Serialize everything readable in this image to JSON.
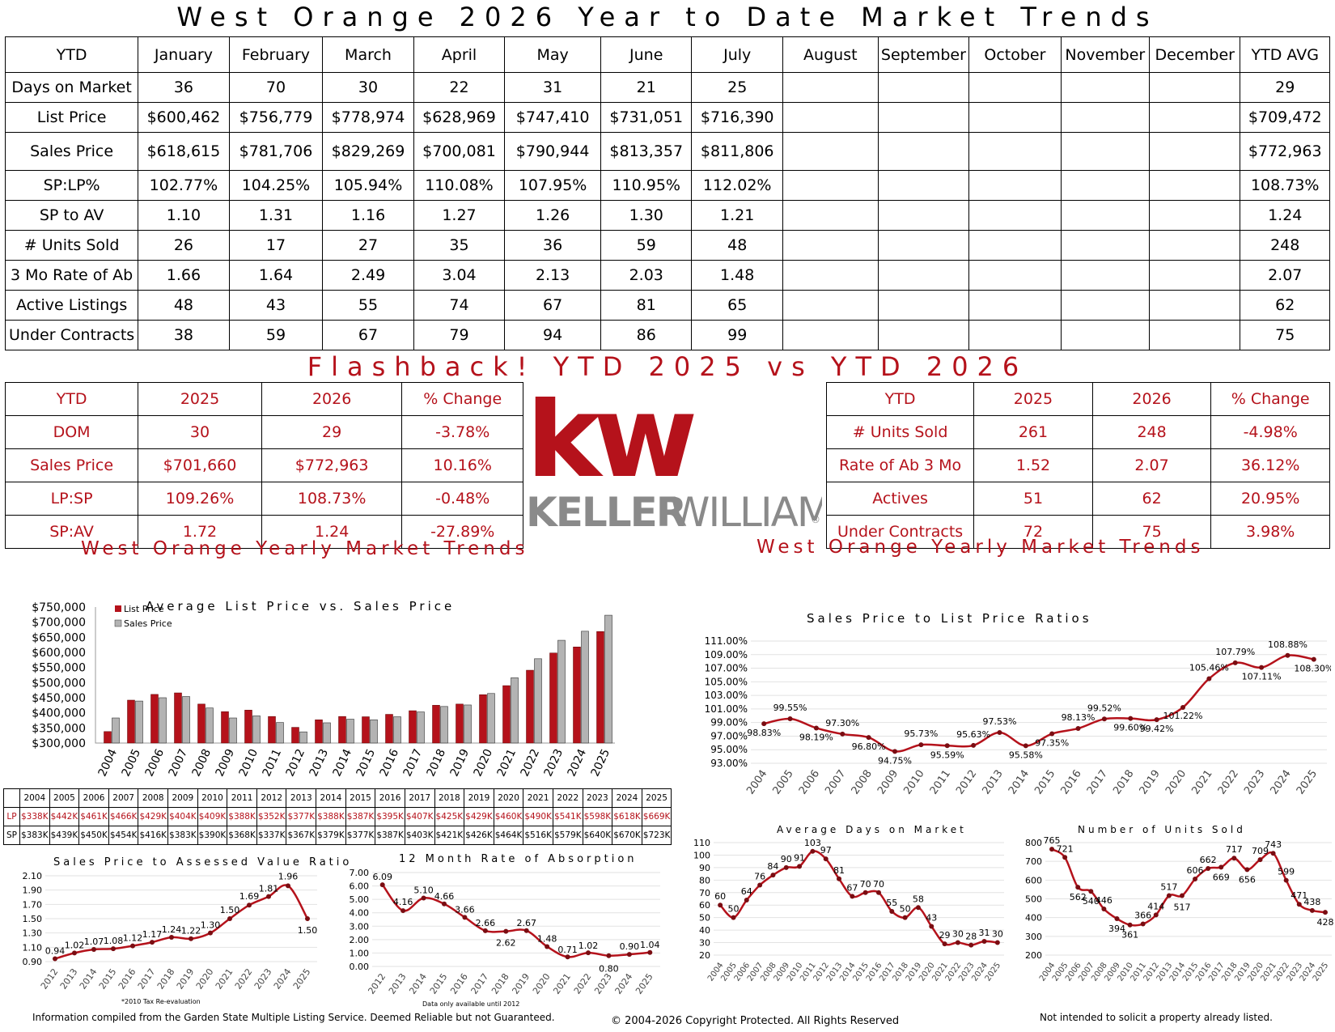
{
  "header": {
    "title": "West Orange 2026 Year to Date Market Trends"
  },
  "ytd_table": {
    "columns": [
      "YTD",
      "January",
      "February",
      "March",
      "April",
      "May",
      "June",
      "July",
      "August",
      "September",
      "October",
      "November",
      "December",
      "YTD AVG"
    ],
    "rows": [
      {
        "label": "Days on Market",
        "values": [
          "36",
          "70",
          "30",
          "22",
          "31",
          "21",
          "25",
          "",
          "",
          "",
          "",
          ""
        ],
        "avg": "29"
      },
      {
        "label": "List Price",
        "values": [
          "$600,462",
          "$756,779",
          "$778,974",
          "$628,969",
          "$747,410",
          "$731,051",
          "$716,390",
          "",
          "",
          "",
          "",
          ""
        ],
        "avg": "$709,472"
      },
      {
        "label": "Sales Price",
        "values": [
          "$618,615",
          "$781,706",
          "$829,269",
          "$700,081",
          "$790,944",
          "$813,357",
          "$811,806",
          "",
          "",
          "",
          "",
          ""
        ],
        "avg": "$772,963"
      },
      {
        "label": "SP:LP%",
        "values": [
          "102.77%",
          "104.25%",
          "105.94%",
          "110.08%",
          "107.95%",
          "110.95%",
          "112.02%",
          "",
          "",
          "",
          "",
          ""
        ],
        "avg": "108.73%"
      },
      {
        "label": "SP to AV",
        "values": [
          "1.10",
          "1.31",
          "1.16",
          "1.27",
          "1.26",
          "1.30",
          "1.21",
          "",
          "",
          "",
          "",
          ""
        ],
        "avg": "1.24"
      },
      {
        "label": "# Units Sold",
        "values": [
          "26",
          "17",
          "27",
          "35",
          "36",
          "59",
          "48",
          "",
          "",
          "",
          "",
          ""
        ],
        "avg": "248"
      },
      {
        "label": "3 Mo Rate of Ab",
        "values": [
          "1.66",
          "1.64",
          "2.49",
          "3.04",
          "2.13",
          "2.03",
          "1.48",
          "",
          "",
          "",
          "",
          ""
        ],
        "avg": "2.07"
      },
      {
        "label": "Active Listings",
        "values": [
          "48",
          "43",
          "55",
          "74",
          "67",
          "81",
          "65",
          "",
          "",
          "",
          "",
          ""
        ],
        "avg": "62"
      },
      {
        "label": "Under Contracts",
        "values": [
          "38",
          "59",
          "67",
          "79",
          "94",
          "86",
          "99",
          "",
          "",
          "",
          "",
          ""
        ],
        "avg": "75"
      }
    ]
  },
  "flashback": {
    "title": "Flashback!  YTD 2025 vs YTD 2026",
    "left": {
      "headers": [
        "YTD",
        "2025",
        "2026",
        "% Change"
      ],
      "rows": [
        [
          "DOM",
          "30",
          "29",
          "-3.78%"
        ],
        [
          "Sales Price",
          "$701,660",
          "$772,963",
          "10.16%"
        ],
        [
          "LP:SP",
          "109.26%",
          "108.73%",
          "-0.48%"
        ],
        [
          "SP:AV",
          "1.72",
          "1.24",
          "-27.89%"
        ]
      ]
    },
    "right": {
      "headers": [
        "YTD",
        "2025",
        "2026",
        "% Change"
      ],
      "rows": [
        [
          "# Units Sold",
          "261",
          "248",
          "-4.98%"
        ],
        [
          "Rate of Ab 3 Mo",
          "1.52",
          "2.07",
          "36.12%"
        ],
        [
          "Actives",
          "51",
          "62",
          "20.95%"
        ],
        [
          "Under Contracts",
          "72",
          "75",
          "3.98%"
        ]
      ]
    }
  },
  "logo": {
    "mark": "kw",
    "wordmark_left": "KELLER",
    "wordmark_right": "WILLIAMS",
    "registered": "®",
    "mark_color": "#b5121b",
    "wordmark_color": "#8a8a8a"
  },
  "sections": {
    "left_title": "West Orange Yearly Market Trends",
    "right_title": "West Orange Yearly Market Trends"
  },
  "colors": {
    "accent": "#b5121b",
    "sales_bar": "#b3b3b3"
  },
  "footer": {
    "left": "Information compiled from the Garden State Multiple Listing Service.  Deemed Reliable but not Guaranteed.",
    "center": "© 2004-2026 Copyright Protected.  All Rights Reserved",
    "right": "Not intended to solicit a property already listed.",
    "tax_note": "*2010 Tax Re-evaluation",
    "absorption_note": "Data only available until 2012"
  },
  "chart_data": [
    {
      "id": "lp_vs_sp",
      "type": "bar",
      "title": "Average List Price vs. Sales Price",
      "categories": [
        "2004",
        "2005",
        "2006",
        "2007",
        "2008",
        "2009",
        "2010",
        "2011",
        "2012",
        "2013",
        "2014",
        "2015",
        "2016",
        "2017",
        "2018",
        "2019",
        "2020",
        "2021",
        "2022",
        "2023",
        "2024",
        "2025"
      ],
      "series": [
        {
          "name": "List Price",
          "values": [
            338,
            442,
            461,
            466,
            429,
            404,
            409,
            388,
            352,
            377,
            388,
            387,
            395,
            407,
            425,
            429,
            460,
            490,
            541,
            598,
            618,
            669
          ]
        },
        {
          "name": "Sales Price",
          "values": [
            383,
            439,
            450,
            454,
            416,
            383,
            390,
            368,
            337,
            367,
            379,
            377,
            387,
            403,
            421,
            426,
            464,
            516,
            579,
            640,
            670,
            723
          ]
        }
      ],
      "ylim": [
        300000,
        750000
      ],
      "yticks": [
        "$300,000",
        "$350,000",
        "$400,000",
        "$450,000",
        "$500,000",
        "$550,000",
        "$600,000",
        "$650,000",
        "$700,000",
        "$750,000"
      ],
      "table_labels": {
        "lp": "LP",
        "sp": "SP"
      },
      "lp_labels": [
        "$338K",
        "$442K",
        "$461K",
        "$466K",
        "$429K",
        "$404K",
        "$409K",
        "$388K",
        "$352K",
        "$377K",
        "$388K",
        "$387K",
        "$395K",
        "$407K",
        "$425K",
        "$429K",
        "$460K",
        "$490K",
        "$541K",
        "$598K",
        "$618K",
        "$669K"
      ],
      "sp_labels": [
        "$383K",
        "$439K",
        "$450K",
        "$454K",
        "$416K",
        "$383K",
        "$390K",
        "$368K",
        "$337K",
        "$367K",
        "$379K",
        "$377K",
        "$387K",
        "$403K",
        "$421K",
        "$426K",
        "$464K",
        "$516K",
        "$579K",
        "$640K",
        "$670K",
        "$723K"
      ],
      "legend": "top-left"
    },
    {
      "id": "sp_av",
      "type": "line",
      "title": "Sales Price to Assessed Value Ratio",
      "x": [
        "2012",
        "2013",
        "2014",
        "2015",
        "2016",
        "2017",
        "2018",
        "2019",
        "2020",
        "2021",
        "2022",
        "2023",
        "2024",
        "2025"
      ],
      "values": [
        0.94,
        1.02,
        1.07,
        1.08,
        1.12,
        1.17,
        1.24,
        1.22,
        1.3,
        1.5,
        1.69,
        1.81,
        1.96,
        1.5
      ],
      "labels": [
        "0.94",
        "1.02",
        "1.07",
        "1.08",
        "1.12",
        "1.17",
        "1.24",
        "1.22",
        "1.30",
        "1.50",
        "1.69",
        "1.81",
        "1.96",
        "1.50"
      ],
      "ylim": [
        0.9,
        2.1
      ],
      "yticks": [
        "0.90",
        "1.10",
        "1.30",
        "1.50",
        "1.70",
        "1.90",
        "2.10"
      ]
    },
    {
      "id": "absorption",
      "type": "line",
      "title": "12 Month Rate of Absorption",
      "x": [
        "2012",
        "2013",
        "2014",
        "2015",
        "2016",
        "2017",
        "2018",
        "2019",
        "2020",
        "2021",
        "2022",
        "2023",
        "2024",
        "2025"
      ],
      "values": [
        6.09,
        4.16,
        5.1,
        4.66,
        3.66,
        2.66,
        2.62,
        2.67,
        1.48,
        0.71,
        1.02,
        0.8,
        0.9,
        1.04
      ],
      "labels": [
        "6.09",
        "4.16",
        "5.10",
        "4.66",
        "3.66",
        "2.66",
        "2.62",
        "2.67",
        "1.48",
        "0.71",
        "1.02",
        "0.80",
        "0.90",
        "1.04"
      ],
      "ylim": [
        0,
        7
      ],
      "yticks": [
        "0.00",
        "1.00",
        "2.00",
        "3.00",
        "4.00",
        "5.00",
        "6.00",
        "7.00"
      ]
    },
    {
      "id": "sp_lp",
      "type": "line",
      "title": "Sales Price to List Price Ratios",
      "x": [
        "2004",
        "2005",
        "2006",
        "2007",
        "2008",
        "2009",
        "2010",
        "2011",
        "2012",
        "2013",
        "2014",
        "2015",
        "2016",
        "2017",
        "2018",
        "2019",
        "2020",
        "2021",
        "2022",
        "2023",
        "2024",
        "2025"
      ],
      "values": [
        98.83,
        99.55,
        98.19,
        97.3,
        96.8,
        94.75,
        95.73,
        95.59,
        95.63,
        97.53,
        95.58,
        97.35,
        98.13,
        99.52,
        99.6,
        99.42,
        101.22,
        105.46,
        107.79,
        107.11,
        108.88,
        108.3
      ],
      "labels": [
        "98.83%",
        "99.55%",
        "98.19%",
        "97.30%",
        "96.80%",
        "94.75%",
        "95.73%",
        "95.59%",
        "95.63%",
        "97.53%",
        "95.58%",
        "97.35%",
        "98.13%",
        "99.52%",
        "99.60%",
        "99.42%",
        "101.22%",
        "105.46%",
        "107.79%",
        "107.11%",
        "108.88%",
        "108.30%"
      ],
      "ylim": [
        93,
        111
      ],
      "yticks": [
        "93.00%",
        "95.00%",
        "97.00%",
        "99.00%",
        "101.00%",
        "103.00%",
        "105.00%",
        "107.00%",
        "109.00%",
        "111.00%"
      ]
    },
    {
      "id": "dom",
      "type": "line",
      "title": "Average Days on Market",
      "x": [
        "2004",
        "2005",
        "2006",
        "2007",
        "2008",
        "2009",
        "2010",
        "2011",
        "2012",
        "2013",
        "2014",
        "2015",
        "2016",
        "2017",
        "2018",
        "2019",
        "2020",
        "2021",
        "2022",
        "2023",
        "2024",
        "2025"
      ],
      "values": [
        60,
        50,
        64,
        76,
        84,
        90,
        91,
        103,
        97,
        81,
        67,
        70,
        70,
        55,
        50,
        58,
        43,
        29,
        30,
        28,
        31,
        30
      ],
      "labels": [
        "60",
        "50",
        "64",
        "76",
        "84",
        "90",
        "91",
        "103",
        "97",
        "81",
        "67",
        "70",
        "70",
        "55",
        "50",
        "58",
        "43",
        "29",
        "30",
        "28",
        "31",
        "30"
      ],
      "ylim": [
        20,
        110
      ],
      "yticks": [
        "20",
        "30",
        "40",
        "50",
        "60",
        "70",
        "80",
        "90",
        "100",
        "110"
      ]
    },
    {
      "id": "units",
      "type": "line",
      "title": "Number of Units Sold",
      "x": [
        "2004",
        "2005",
        "2006",
        "2007",
        "2008",
        "2009",
        "2010",
        "2011",
        "2012",
        "2013",
        "2014",
        "2015",
        "2016",
        "2017",
        "2018",
        "2019",
        "2020",
        "2021",
        "2022",
        "2023",
        "2024",
        "2025"
      ],
      "values": [
        765,
        721,
        562,
        540,
        446,
        394,
        361,
        366,
        414,
        517,
        517,
        606,
        662,
        669,
        717,
        656,
        709,
        743,
        599,
        471,
        438,
        428
      ],
      "labels": [
        "765",
        "721",
        "562",
        "540",
        "446",
        "394",
        "361",
        "366",
        "414",
        "517",
        "517",
        "606",
        "662",
        "669",
        "717",
        "656",
        "709",
        "743",
        "599",
        "471",
        "438",
        "428"
      ],
      "ylim": [
        200,
        800
      ],
      "yticks": [
        "200",
        "300",
        "400",
        "500",
        "600",
        "700",
        "800"
      ]
    }
  ]
}
